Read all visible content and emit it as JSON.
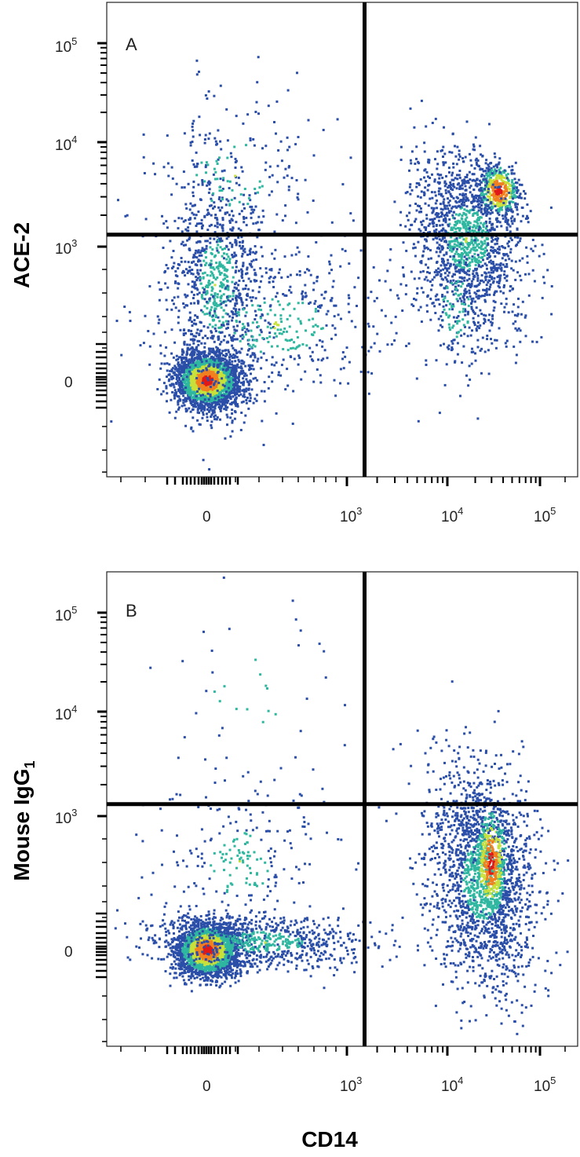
{
  "chart_data": [
    {
      "type": "scatter",
      "subtype": "flow-cytometry-density",
      "panel": "A",
      "xlabel": "CD14",
      "ylabel": "ACE-2",
      "x_ticks": [
        {
          "base": "0",
          "exp": ""
        },
        {
          "base": "10",
          "exp": "3"
        },
        {
          "base": "10",
          "exp": "4"
        },
        {
          "base": "10",
          "exp": "5"
        }
      ],
      "y_ticks": [
        {
          "base": "0",
          "exp": ""
        },
        {
          "base": "10",
          "exp": "3"
        },
        {
          "base": "10",
          "exp": "4"
        },
        {
          "base": "10",
          "exp": "5"
        }
      ],
      "quadrant_gate": {
        "x": 1500,
        "y": 1300
      },
      "populations": [
        {
          "name": "CD14- ACE-2-",
          "center": {
            "x": 0,
            "y": 0
          },
          "density": "very high"
        },
        {
          "name": "CD14+ ACE-2+",
          "center": {
            "x": 35000,
            "y": 3500
          },
          "density": "medium"
        }
      ]
    },
    {
      "type": "scatter",
      "subtype": "flow-cytometry-density",
      "panel": "B",
      "xlabel": "CD14",
      "ylabel": "Mouse IgG",
      "ylabel_sub": "1",
      "x_ticks": [
        {
          "base": "0",
          "exp": ""
        },
        {
          "base": "10",
          "exp": "3"
        },
        {
          "base": "10",
          "exp": "4"
        },
        {
          "base": "10",
          "exp": "5"
        }
      ],
      "y_ticks": [
        {
          "base": "0",
          "exp": ""
        },
        {
          "base": "10",
          "exp": "3"
        },
        {
          "base": "10",
          "exp": "4"
        },
        {
          "base": "10",
          "exp": "5"
        }
      ],
      "quadrant_gate": {
        "x": 1500,
        "y": 1300
      },
      "populations": [
        {
          "name": "CD14- IgG1-",
          "center": {
            "x": 0,
            "y": 0
          },
          "density": "very high"
        },
        {
          "name": "CD14+ IgG1-",
          "center": {
            "x": 35000,
            "y": 300
          },
          "density": "medium"
        }
      ]
    }
  ],
  "colors": {
    "low": "#2b4fa8",
    "mid": "#2fb7a0",
    "midhigh": "#c8e03a",
    "high": "#f08020",
    "peak": "#e01818",
    "gate": "#000000"
  }
}
